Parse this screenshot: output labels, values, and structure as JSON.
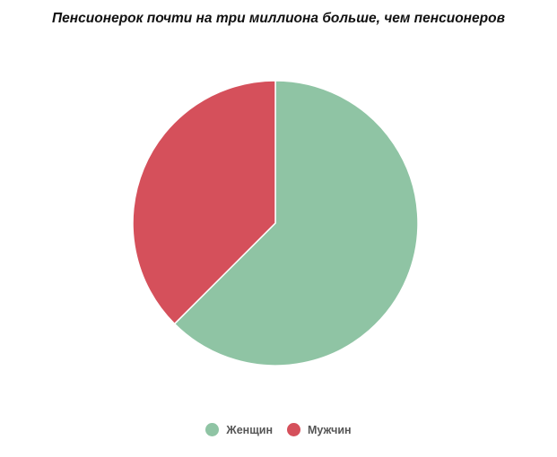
{
  "chart_data": {
    "type": "pie",
    "title": "Пенсионерок почти на три миллиона больше, чем пенсионеров",
    "categories": [
      "Женщин",
      "Мужчин"
    ],
    "values": [
      62.5,
      37.5
    ],
    "colors": [
      "#8fc4a4",
      "#d5505b"
    ],
    "legend_position": "bottom"
  }
}
